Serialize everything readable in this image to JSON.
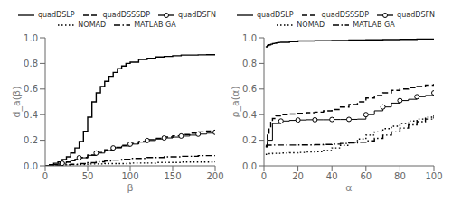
{
  "chart_data": [
    {
      "type": "step",
      "xlabel": "β",
      "ylabel": "d_a(β)",
      "xlim": [
        0,
        200
      ],
      "ylim": [
        0,
        1
      ],
      "xticks": [
        0,
        50,
        100,
        150,
        200
      ],
      "yticks": [
        {
          "value": 0,
          "label": "0.0"
        },
        0.2,
        0.4,
        0.6,
        0.8,
        {
          "value": 1,
          "label": "1.0"
        }
      ],
      "grid": false,
      "legend": "top",
      "series": [
        {
          "name": "quadDSLP",
          "color": "#000000",
          "line_style": "solid",
          "x": [
            0,
            5,
            10,
            15,
            20,
            25,
            30,
            35,
            40,
            45,
            50,
            55,
            60,
            65,
            70,
            75,
            80,
            85,
            90,
            95,
            100,
            110,
            120,
            130,
            140,
            150,
            160,
            170,
            180,
            190,
            200
          ],
          "values": [
            0,
            0.01,
            0.02,
            0.03,
            0.05,
            0.07,
            0.1,
            0.14,
            0.19,
            0.27,
            0.38,
            0.5,
            0.57,
            0.62,
            0.66,
            0.7,
            0.73,
            0.76,
            0.78,
            0.8,
            0.81,
            0.83,
            0.84,
            0.85,
            0.855,
            0.86,
            0.865,
            0.865,
            0.867,
            0.868,
            0.87
          ]
        },
        {
          "name": "quadDSSSDP",
          "color": "#000000",
          "line_style": "dashed",
          "x": [
            0,
            5,
            10,
            15,
            20,
            25,
            30,
            35,
            40,
            50,
            60,
            70,
            80,
            90,
            100,
            110,
            120,
            130,
            140,
            150,
            160,
            170,
            180,
            190,
            200
          ],
          "values": [
            0,
            0.005,
            0.01,
            0.015,
            0.02,
            0.03,
            0.04,
            0.05,
            0.065,
            0.085,
            0.105,
            0.125,
            0.145,
            0.16,
            0.175,
            0.19,
            0.205,
            0.215,
            0.225,
            0.235,
            0.245,
            0.255,
            0.265,
            0.272,
            0.28
          ]
        },
        {
          "name": "quadDSFN",
          "color": "#000000",
          "line_style": "solid",
          "marker": "circle",
          "x": [
            0,
            5,
            10,
            15,
            20,
            25,
            30,
            35,
            40,
            50,
            60,
            70,
            80,
            90,
            100,
            110,
            120,
            130,
            140,
            150,
            160,
            170,
            180,
            190,
            200
          ],
          "values": [
            0,
            0.005,
            0.01,
            0.015,
            0.02,
            0.03,
            0.04,
            0.05,
            0.063,
            0.082,
            0.1,
            0.12,
            0.14,
            0.155,
            0.17,
            0.185,
            0.198,
            0.21,
            0.218,
            0.225,
            0.233,
            0.24,
            0.248,
            0.255,
            0.262
          ],
          "marker_x": [
            20,
            40,
            60,
            80,
            100,
            120,
            140,
            160,
            180,
            200
          ],
          "marker_values": [
            0.02,
            0.063,
            0.1,
            0.14,
            0.17,
            0.198,
            0.218,
            0.233,
            0.248,
            0.262
          ]
        },
        {
          "name": "NOMAD",
          "color": "#000000",
          "line_style": "dotted",
          "x": [
            0,
            10,
            20,
            30,
            50,
            70,
            100,
            130,
            160,
            200
          ],
          "values": [
            0,
            0.005,
            0.008,
            0.01,
            0.015,
            0.018,
            0.022,
            0.026,
            0.03,
            0.035
          ]
        },
        {
          "name": "MATLAB GA",
          "color": "#000000",
          "line_style": "dashdot",
          "x": [
            0,
            10,
            20,
            30,
            40,
            50,
            60,
            70,
            80,
            90,
            100,
            120,
            140,
            160,
            180,
            200
          ],
          "values": [
            0,
            0.005,
            0.008,
            0.012,
            0.018,
            0.025,
            0.032,
            0.038,
            0.045,
            0.052,
            0.058,
            0.065,
            0.07,
            0.075,
            0.08,
            0.085
          ]
        }
      ]
    },
    {
      "type": "step",
      "xlabel": "α",
      "ylabel": "ρ_a(α)",
      "xlim": [
        0,
        100
      ],
      "ylim": [
        0,
        1
      ],
      "xticks": [
        0,
        20,
        40,
        60,
        80,
        100
      ],
      "yticks": [
        {
          "value": 0,
          "label": "0.0"
        },
        0.2,
        0.4,
        0.6,
        0.8,
        {
          "value": 1,
          "label": "1.0"
        }
      ],
      "grid": false,
      "legend": "top",
      "series": [
        {
          "name": "quadDSLP",
          "color": "#000000",
          "line_style": "solid",
          "x": [
            1,
            2,
            3,
            4,
            5,
            6,
            7,
            8,
            9,
            10,
            15,
            20,
            30,
            40,
            50,
            60,
            70,
            80,
            90,
            100
          ],
          "values": [
            0.93,
            0.94,
            0.945,
            0.95,
            0.955,
            0.957,
            0.96,
            0.962,
            0.964,
            0.965,
            0.97,
            0.975,
            0.978,
            0.98,
            0.982,
            0.984,
            0.986,
            0.988,
            0.99,
            0.992
          ]
        },
        {
          "name": "quadDSSSDP",
          "color": "#000000",
          "line_style": "dashed",
          "x": [
            1,
            2,
            3,
            4,
            5,
            7,
            10,
            15,
            20,
            25,
            30,
            35,
            40,
            45,
            50,
            55,
            60,
            65,
            70,
            75,
            80,
            85,
            90,
            95,
            100
          ],
          "values": [
            0.15,
            0.24,
            0.3,
            0.34,
            0.37,
            0.39,
            0.4,
            0.405,
            0.41,
            0.415,
            0.42,
            0.43,
            0.44,
            0.46,
            0.48,
            0.5,
            0.53,
            0.55,
            0.57,
            0.59,
            0.6,
            0.61,
            0.62,
            0.63,
            0.64
          ]
        },
        {
          "name": "quadDSFN",
          "color": "#000000",
          "line_style": "solid",
          "marker": "circle",
          "x": [
            1,
            2,
            5,
            10,
            15,
            20,
            25,
            30,
            35,
            40,
            45,
            50,
            55,
            60,
            65,
            70,
            75,
            80,
            85,
            90,
            95,
            100
          ],
          "values": [
            0.15,
            0.2,
            0.33,
            0.35,
            0.355,
            0.358,
            0.36,
            0.36,
            0.36,
            0.362,
            0.362,
            0.363,
            0.365,
            0.4,
            0.43,
            0.46,
            0.49,
            0.51,
            0.52,
            0.54,
            0.55,
            0.57
          ],
          "marker_x": [
            10,
            20,
            30,
            40,
            50,
            60,
            70,
            80,
            90,
            100
          ],
          "marker_values": [
            0.35,
            0.358,
            0.36,
            0.362,
            0.363,
            0.4,
            0.46,
            0.51,
            0.54,
            0.57
          ]
        },
        {
          "name": "NOMAD",
          "color": "#000000",
          "line_style": "dotted",
          "x": [
            1,
            2,
            5,
            10,
            15,
            20,
            25,
            30,
            35,
            40,
            45,
            50,
            55,
            60,
            65,
            70,
            75,
            80,
            85,
            90,
            95,
            100
          ],
          "values": [
            0.09,
            0.095,
            0.098,
            0.1,
            0.102,
            0.105,
            0.108,
            0.11,
            0.12,
            0.14,
            0.16,
            0.185,
            0.21,
            0.24,
            0.265,
            0.29,
            0.31,
            0.33,
            0.35,
            0.365,
            0.38,
            0.395
          ]
        },
        {
          "name": "MATLAB GA",
          "color": "#000000",
          "line_style": "dashdot",
          "x": [
            1,
            2,
            5,
            10,
            15,
            20,
            25,
            30,
            35,
            40,
            45,
            50,
            55,
            60,
            65,
            70,
            75,
            80,
            85,
            90,
            95,
            100
          ],
          "values": [
            0.16,
            0.162,
            0.163,
            0.163,
            0.163,
            0.164,
            0.164,
            0.165,
            0.167,
            0.17,
            0.175,
            0.18,
            0.185,
            0.195,
            0.215,
            0.24,
            0.265,
            0.295,
            0.32,
            0.345,
            0.365,
            0.385
          ]
        }
      ]
    }
  ]
}
